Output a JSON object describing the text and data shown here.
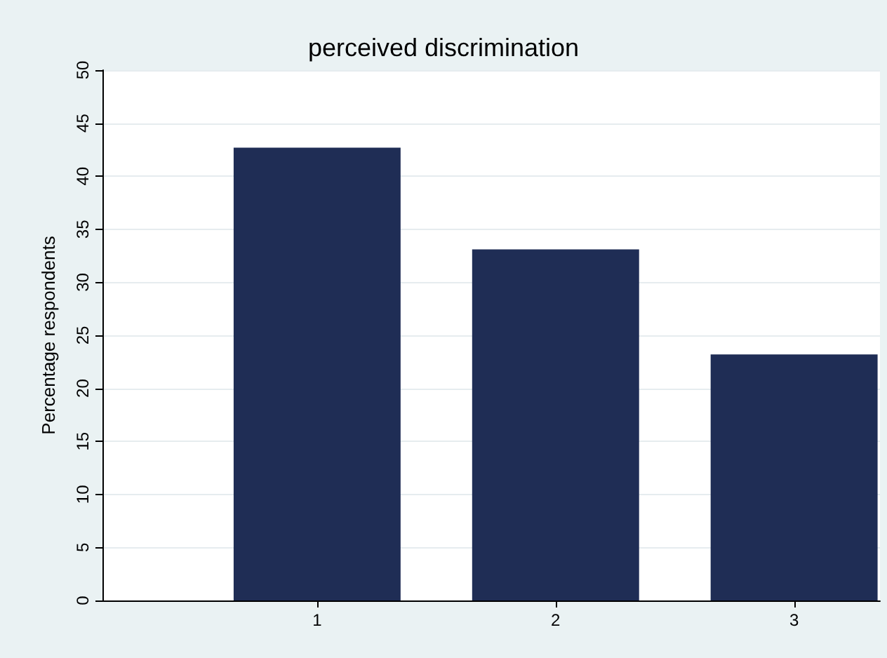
{
  "chart_data": {
    "type": "bar",
    "title": "perceived discrimination",
    "ylabel": "Percentage respondents",
    "x": [
      1,
      2,
      3
    ],
    "values": [
      42.7,
      33.1,
      23.2
    ],
    "color": "#1f2d55",
    "xlim": [
      0.1,
      3.36
    ],
    "xticks": [
      1,
      2,
      3
    ],
    "ylim": [
      0,
      50
    ],
    "yticks": [
      0,
      5,
      10,
      15,
      20,
      25,
      30,
      35,
      40,
      45,
      50
    ],
    "grid": "y"
  }
}
